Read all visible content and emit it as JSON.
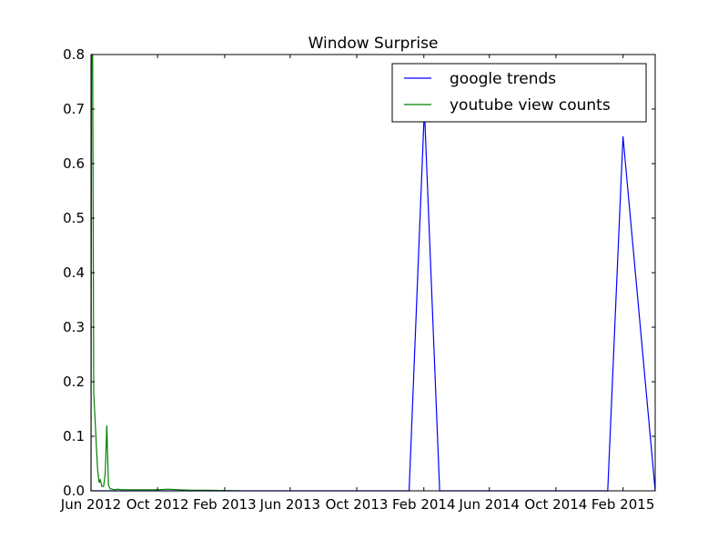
{
  "chart_data": {
    "type": "line",
    "title": "Window Surprise",
    "xlabel": "",
    "ylabel": "",
    "xlim": [
      "2012-06-01",
      "2015-04-01"
    ],
    "ylim": [
      0,
      0.8
    ],
    "x_ticks": [
      "Jun 2012",
      "Oct 2012",
      "Feb 2013",
      "Jun 2013",
      "Oct 2013",
      "Feb 2014",
      "Jun 2014",
      "Oct 2014",
      "Feb 2015"
    ],
    "y_ticks": [
      "0.0",
      "0.1",
      "0.2",
      "0.3",
      "0.4",
      "0.5",
      "0.6",
      "0.7",
      "0.8"
    ],
    "grid": false,
    "legend": "top-right",
    "series": [
      {
        "name": "google trends",
        "color": "#0000ff",
        "points": [
          [
            "2012-06-01",
            0
          ],
          [
            "2014-01-05",
            0
          ],
          [
            "2014-02-02",
            0.7
          ],
          [
            "2014-03-02",
            0
          ],
          [
            "2015-01-04",
            0
          ],
          [
            "2015-02-01",
            0.65
          ],
          [
            "2015-04-01",
            0
          ]
        ]
      },
      {
        "name": "youtube view counts",
        "color": "#008000",
        "points": [
          [
            "2012-06-01",
            0
          ],
          [
            "2012-06-02",
            0.8
          ],
          [
            "2012-06-04",
            0.8
          ],
          [
            "2012-06-06",
            0.18
          ],
          [
            "2012-06-09",
            0.12
          ],
          [
            "2012-06-13",
            0.04
          ],
          [
            "2012-06-16",
            0.015
          ],
          [
            "2012-06-18",
            0.02
          ],
          [
            "2012-06-21",
            0.008
          ],
          [
            "2012-06-24",
            0.008
          ],
          [
            "2012-06-27",
            0.03
          ],
          [
            "2012-06-30",
            0.12
          ],
          [
            "2012-07-03",
            0.01
          ],
          [
            "2012-07-06",
            0.004
          ],
          [
            "2012-07-10",
            0.003
          ],
          [
            "2012-07-14",
            0.002
          ],
          [
            "2012-07-20",
            0.003
          ],
          [
            "2012-07-28",
            0.002
          ],
          [
            "2012-08-10",
            0.002
          ],
          [
            "2012-09-01",
            0.002
          ],
          [
            "2012-10-01",
            0.002
          ],
          [
            "2012-10-20",
            0.003
          ],
          [
            "2012-11-10",
            0.002
          ],
          [
            "2012-12-01",
            0.001
          ],
          [
            "2013-01-01",
            0.001
          ],
          [
            "2013-02-01",
            0.0005
          ],
          [
            "2013-03-01",
            0
          ]
        ]
      }
    ]
  }
}
